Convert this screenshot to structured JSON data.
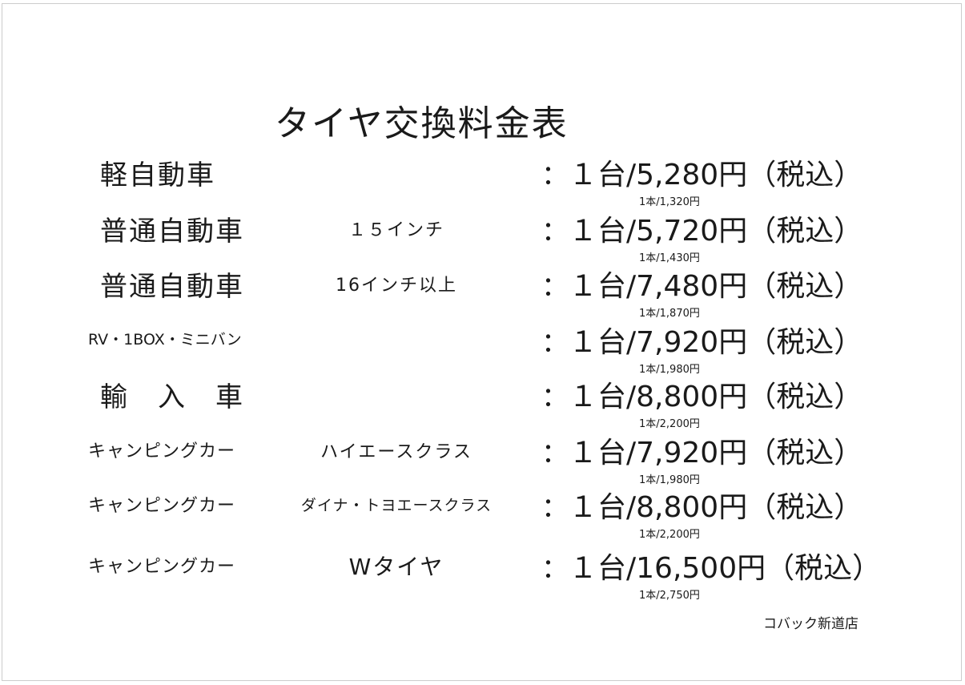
{
  "title": "タイヤ交換料金表",
  "rows": [
    {
      "name": "軽自動車",
      "spec": "",
      "price": "１台/5,280円（税込）",
      "unit_price": "1本/1,320円"
    },
    {
      "name": "普通自動車",
      "spec": "１５インチ",
      "price": "１台/5,720円（税込）",
      "unit_price": "1本/1,430円"
    },
    {
      "name": "普通自動車",
      "spec": "16インチ以上",
      "price": "１台/7,480円（税込）",
      "unit_price": "1本/1,870円"
    },
    {
      "name": "RV・1BOX・ミニバン",
      "spec": "",
      "price": "１台/7,920円（税込）",
      "unit_price": "1本/1,980円"
    },
    {
      "name": "輸　入　車",
      "spec": "",
      "price": "１台/8,800円（税込）",
      "unit_price": "1本/2,200円"
    },
    {
      "name": "キャンピングカー",
      "spec": "ハイエースクラス",
      "price": "１台/7,920円（税込）",
      "unit_price": "1本/1,980円"
    },
    {
      "name": "キャンピングカー",
      "spec": "ダイナ・トヨエースクラス",
      "price": "１台/8,800円（税込）",
      "unit_price": "1本/2,200円"
    },
    {
      "name": "キャンピングカー",
      "spec": "Wタイヤ",
      "price": "１台/16,500円（税込）",
      "unit_price": "1本/2,750円"
    }
  ],
  "colon": "：",
  "footer": "コバック新道店"
}
